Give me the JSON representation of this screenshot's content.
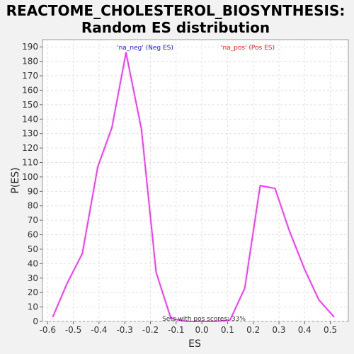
{
  "chart_data": {
    "type": "line",
    "title_line1": "REACTOME_CHOLESTEROL_BIOSYNTHESIS:",
    "title_line2": "Random ES distribution",
    "xlabel": "ES",
    "ylabel": "P(ES)",
    "xlim": [
      -0.62,
      0.57
    ],
    "ylim": [
      0,
      195
    ],
    "xticks": [
      -0.6,
      -0.5,
      -0.4,
      -0.3,
      -0.2,
      -0.1,
      0.0,
      0.1,
      0.2,
      0.3,
      0.4,
      0.5
    ],
    "xtick_labels": [
      "-0.6",
      "-0.5",
      "-0.4",
      "-0.3",
      "-0.2",
      "-0.1",
      "0.0",
      "0.1",
      "0.2",
      "0.3",
      "0.4",
      "0.5"
    ],
    "yticks": [
      0,
      10,
      20,
      30,
      40,
      50,
      60,
      70,
      80,
      90,
      100,
      110,
      120,
      130,
      140,
      150,
      160,
      170,
      180,
      190
    ],
    "grid": true,
    "series": [
      {
        "color": "#ff33ff",
        "x": [
          -0.58,
          -0.525,
          -0.465,
          -0.405,
          -0.35,
          -0.295,
          -0.235,
          -0.178,
          -0.12,
          -0.06,
          0.0,
          0.05,
          0.11,
          0.167,
          0.227,
          0.285,
          0.34,
          0.4,
          0.455,
          0.515
        ],
        "y": [
          3,
          26,
          47,
          107,
          134,
          186,
          133,
          34,
          2,
          0,
          0,
          0,
          1,
          23,
          94,
          92,
          63,
          36,
          15,
          3
        ]
      }
    ],
    "annotations": {
      "neg_label": "'na_neg' (Neg ES)",
      "neg_color": "#1a1aff",
      "pos_label": "'na_pos' (Pos ES)",
      "pos_color": "#ff1a1a",
      "sets_text": "Sets with pos scores: 33%"
    }
  }
}
